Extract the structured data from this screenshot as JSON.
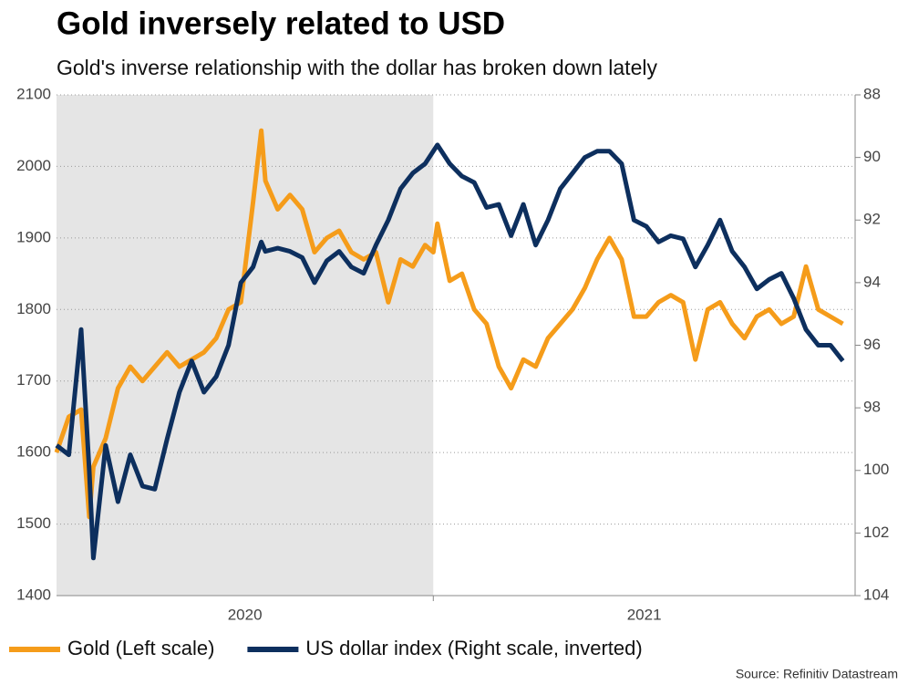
{
  "chart_data": {
    "type": "line",
    "title": "Gold inversely related to USD",
    "subtitle": "Gold's inverse relationship with the dollar has broken down lately",
    "source": "Source: Refinitiv Datastream",
    "x": [
      2020.08,
      2020.11,
      2020.14,
      2020.16,
      2020.17,
      2020.2,
      2020.23,
      2020.26,
      2020.29,
      2020.32,
      2020.35,
      2020.38,
      2020.41,
      2020.44,
      2020.47,
      2020.5,
      2020.53,
      2020.56,
      2020.58,
      2020.59,
      2020.62,
      2020.65,
      2020.68,
      2020.71,
      2020.74,
      2020.77,
      2020.8,
      2020.83,
      2020.86,
      2020.89,
      2020.92,
      2020.95,
      2020.98,
      2021.0,
      2021.01,
      2021.04,
      2021.07,
      2021.1,
      2021.13,
      2021.16,
      2021.19,
      2021.22,
      2021.25,
      2021.28,
      2021.31,
      2021.34,
      2021.37,
      2021.4,
      2021.43,
      2021.46,
      2021.49,
      2021.52,
      2021.55,
      2021.58,
      2021.61,
      2021.64,
      2021.67,
      2021.7,
      2021.73,
      2021.76,
      2021.79,
      2021.82,
      2021.85,
      2021.88,
      2021.91,
      2021.94,
      2021.97,
      2022.0
    ],
    "series": [
      {
        "name": "Gold (Left scale)",
        "color": "#f59c1a",
        "axis": "y",
        "values": [
          1600,
          1650,
          1660,
          1510,
          1580,
          1620,
          1690,
          1720,
          1700,
          1720,
          1740,
          1720,
          1730,
          1740,
          1760,
          1800,
          1810,
          1950,
          2050,
          1980,
          1940,
          1960,
          1940,
          1880,
          1900,
          1910,
          1880,
          1870,
          1880,
          1810,
          1870,
          1860,
          1890,
          1880,
          1920,
          1840,
          1850,
          1800,
          1780,
          1720,
          1690,
          1730,
          1720,
          1760,
          1780,
          1800,
          1830,
          1870,
          1900,
          1870,
          1790,
          1790,
          1810,
          1820,
          1810,
          1730,
          1800,
          1810,
          1780,
          1760,
          1790,
          1800,
          1780,
          1790,
          1860,
          1800,
          1790,
          1780
        ]
      },
      {
        "name": "US dollar index (Right scale, inverted)",
        "color": "#0d2f5e",
        "axis": "y2",
        "values": [
          99.2,
          99.5,
          95.5,
          100.0,
          102.8,
          99.2,
          101.0,
          99.5,
          100.5,
          100.6,
          99.0,
          97.5,
          96.5,
          97.5,
          97.0,
          96.0,
          94.0,
          93.5,
          92.7,
          93.0,
          92.9,
          93.0,
          93.2,
          94.0,
          93.3,
          93.0,
          93.5,
          93.7,
          92.8,
          92.0,
          91.0,
          90.5,
          90.2,
          89.8,
          89.6,
          90.2,
          90.6,
          90.8,
          91.6,
          91.5,
          92.5,
          91.5,
          92.8,
          92.0,
          91.0,
          90.5,
          90.0,
          89.8,
          89.8,
          90.2,
          92.0,
          92.2,
          92.7,
          92.5,
          92.6,
          93.5,
          92.8,
          92.0,
          93.0,
          93.5,
          94.2,
          93.9,
          93.7,
          94.5,
          95.5,
          96.0,
          96.0,
          96.5
        ]
      }
    ],
    "xlim": [
      2020.08,
      2022.03
    ],
    "xticks": [
      2020,
      2021
    ],
    "shaded_range": [
      2020,
      2021
    ],
    "ylim": [
      1400,
      2100
    ],
    "yticks": [
      1400,
      1500,
      1600,
      1700,
      1800,
      1900,
      2000,
      2100
    ],
    "y2lim": [
      88,
      104
    ],
    "y2ticks": [
      88,
      90,
      92,
      94,
      96,
      98,
      100,
      102,
      104
    ],
    "y2_inverted": true,
    "grid": true,
    "legend": "bottom-left"
  }
}
